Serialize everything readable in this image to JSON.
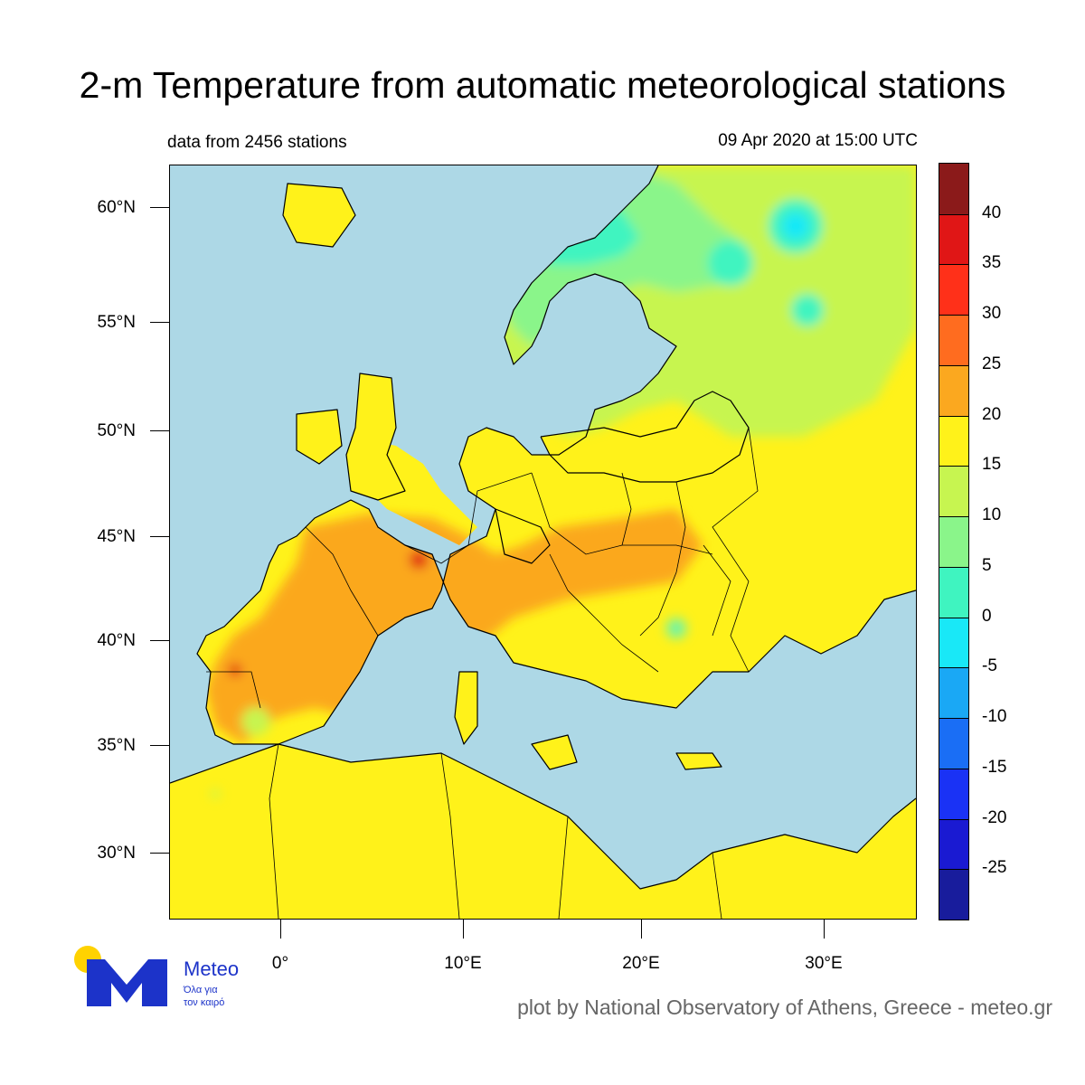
{
  "header": {
    "title": "2-m Temperature from automatic meteorological stations",
    "stations_text": "data from 2456 stations",
    "datetime_text": "09 Apr 2020 at 15:00 UTC"
  },
  "map": {
    "lat_labels": [
      "60°N",
      "55°N",
      "50°N",
      "45°N",
      "40°N",
      "35°N",
      "30°N"
    ],
    "lon_labels": [
      "0°",
      "10°E",
      "20°E",
      "30°E"
    ],
    "sea_color": "#add8e6",
    "coastline_color": "#000000"
  },
  "colorbar": {
    "labels": [
      "40",
      "35",
      "30",
      "25",
      "20",
      "15",
      "10",
      "5",
      "0",
      "-5",
      "-10",
      "-15",
      "-20",
      "-25"
    ],
    "colors_top_to_bottom": [
      "#8b1a1a",
      "#e01616",
      "#ff3019",
      "#ff6c1f",
      "#fba81f",
      "#fff21a",
      "#c7f550",
      "#8af58a",
      "#3ff4c0",
      "#19e8f7",
      "#1aa8f5",
      "#1a6ef5",
      "#1a32f5",
      "#1a1ad2",
      "#181c9c"
    ]
  },
  "logo": {
    "name": "Meteo",
    "tagline_line1": "Όλα για",
    "tagline_line2": "τον καιρό",
    "circle_color": "#ffd200",
    "letter_color": "#1c33c9"
  },
  "footer": {
    "credit": "plot by National Observatory of Athens, Greece - meteo.gr"
  }
}
